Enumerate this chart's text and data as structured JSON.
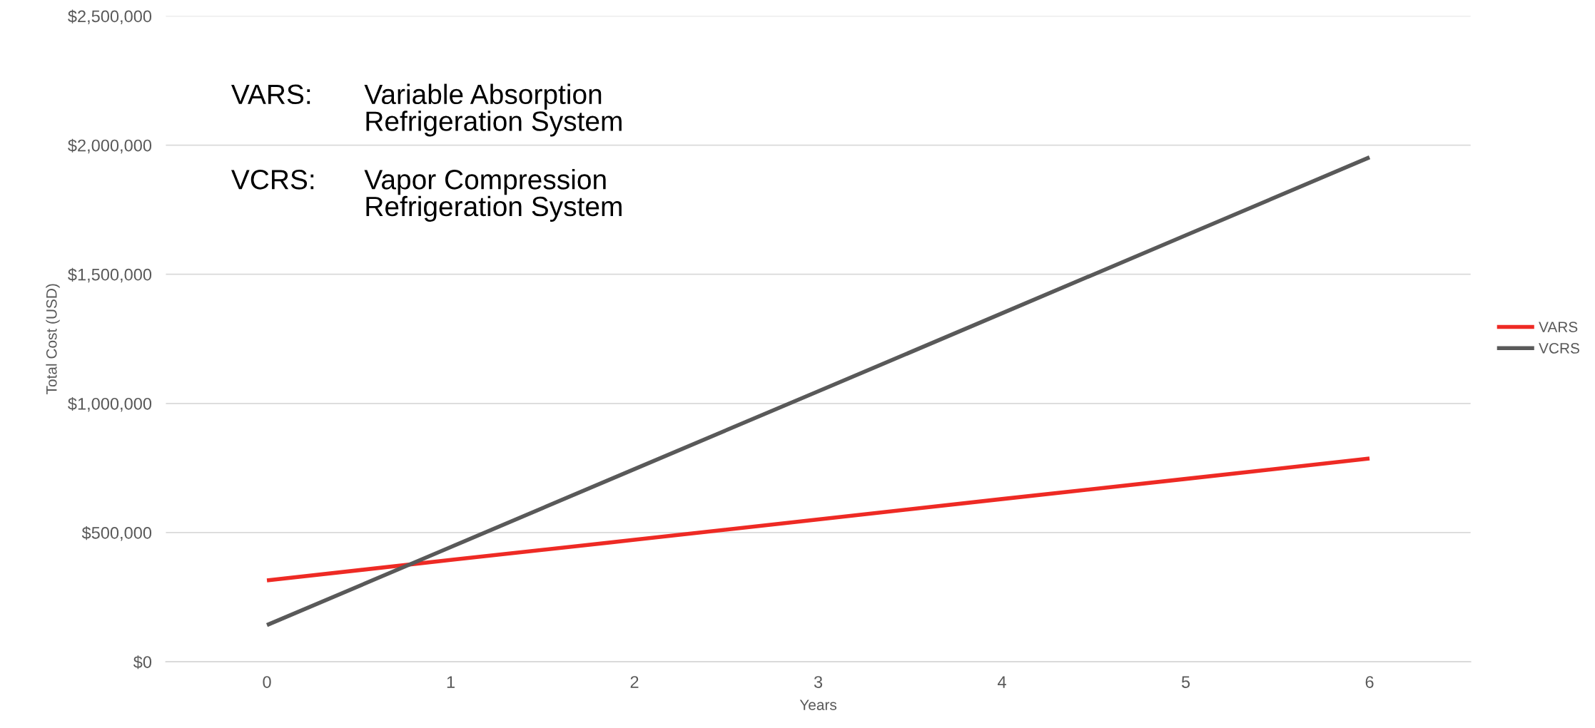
{
  "chart_data": {
    "type": "line",
    "xlabel": "Years",
    "ylabel": "Total Cost (USD)",
    "categories": [
      "0",
      "1",
      "2",
      "3",
      "4",
      "5",
      "6"
    ],
    "series": [
      {
        "name": "VARS",
        "color": "#ee2a24",
        "values": [
          315000,
          394000,
          472000,
          551000,
          630000,
          708000,
          787000
        ]
      },
      {
        "name": "VCRS",
        "color": "#595959",
        "values": [
          142000,
          444000,
          746000,
          1047000,
          1349000,
          1651000,
          1953000
        ]
      }
    ],
    "ylim": [
      0,
      2500000
    ],
    "yticks": [
      {
        "value": 0,
        "label": "$0"
      },
      {
        "value": 500000,
        "label": "$500,000"
      },
      {
        "value": 1000000,
        "label": "$1,000,000"
      },
      {
        "value": 1500000,
        "label": "$1,500,000"
      },
      {
        "value": 2000000,
        "label": "$2,000,000"
      },
      {
        "value": 2500000,
        "label": "$2,500,000"
      }
    ],
    "grid": "y",
    "legend": "right",
    "marker": "none",
    "line_style": "solid",
    "annotations": [
      "VARS:",
      "Variable Absorption\nRefrigeration System",
      "VCRS:",
      "Vapor Compression\nRefrigeration System"
    ]
  }
}
